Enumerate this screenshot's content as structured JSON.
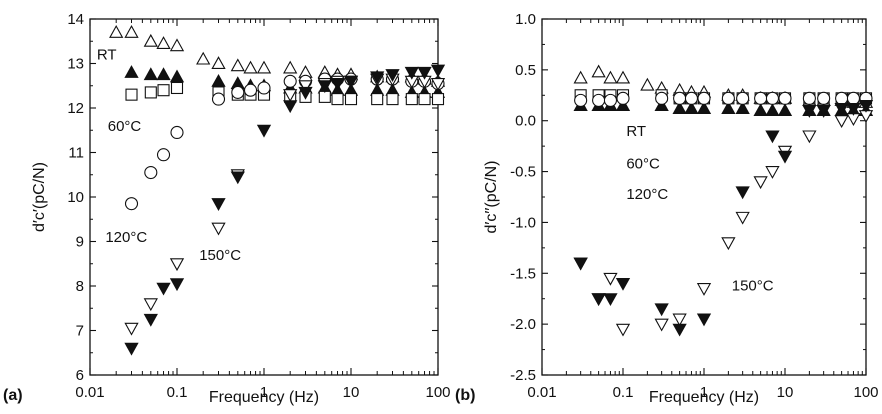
{
  "chart_data": [
    {
      "type": "scatter",
      "panel_label": "(a)",
      "xlabel": "Frequency (Hz)",
      "ylabel": "d′c′(pC/N)",
      "xscale": "log",
      "xlim": [
        0.01,
        100
      ],
      "ylim": [
        6,
        14
      ],
      "xticks": [
        0.01,
        0.1,
        1,
        10,
        100
      ],
      "xtick_labels": [
        "0.01",
        "0.1",
        "1",
        "10",
        "100"
      ],
      "yticks": [
        6,
        7,
        8,
        9,
        10,
        11,
        12,
        13,
        14
      ],
      "ytick_labels": [
        "6",
        "7",
        "8",
        "9",
        "10",
        "11",
        "12",
        "13",
        "14"
      ],
      "grid": false,
      "annotations": [
        {
          "text": "RT",
          "x": 0.012,
          "y": 13.2
        },
        {
          "text": "60°C",
          "x": 0.016,
          "y": 11.6
        },
        {
          "text": "120°C",
          "x": 0.015,
          "y": 9.1
        },
        {
          "text": "150°C",
          "x": 0.18,
          "y": 8.7
        }
      ],
      "series": [
        {
          "marker": "triangle-up-open",
          "x": [
            0.02,
            0.03,
            0.05,
            0.07,
            0.1,
            0.2,
            0.3,
            0.5,
            0.7,
            1,
            2,
            3,
            5,
            7,
            10,
            20,
            30,
            50,
            70,
            100
          ],
          "y": [
            13.7,
            13.7,
            13.5,
            13.45,
            13.4,
            13.1,
            13.0,
            12.95,
            12.9,
            12.9,
            12.9,
            12.8,
            12.8,
            12.75,
            12.75,
            12.7,
            12.7,
            12.7,
            12.65,
            12.6
          ]
        },
        {
          "marker": "triangle-up-filled",
          "x": [
            0.03,
            0.05,
            0.07,
            0.1,
            0.3,
            0.5,
            0.7,
            1,
            2,
            3,
            5,
            7,
            10,
            20,
            30,
            50,
            70,
            100
          ],
          "y": [
            12.8,
            12.75,
            12.75,
            12.7,
            12.6,
            12.55,
            12.5,
            12.5,
            12.45,
            12.45,
            12.45,
            12.4,
            12.4,
            12.4,
            12.4,
            12.35,
            12.35,
            12.35
          ]
        },
        {
          "marker": "square-open",
          "x": [
            0.03,
            0.05,
            0.07,
            0.1,
            0.3,
            0.5,
            0.7,
            1,
            2,
            3,
            5,
            7,
            10,
            20,
            30,
            50,
            70,
            100
          ],
          "y": [
            12.3,
            12.35,
            12.4,
            12.45,
            12.35,
            12.3,
            12.3,
            12.3,
            12.25,
            12.25,
            12.25,
            12.2,
            12.2,
            12.2,
            12.2,
            12.2,
            12.2,
            12.2
          ]
        },
        {
          "marker": "circle-open",
          "x": [
            0.03,
            0.05,
            0.07,
            0.1,
            0.3,
            0.5,
            0.7,
            1,
            2,
            3,
            5,
            7,
            10,
            20,
            30,
            50,
            70,
            100
          ],
          "y": [
            9.85,
            10.55,
            10.95,
            11.45,
            12.2,
            12.35,
            12.4,
            12.45,
            12.6,
            12.6,
            12.65,
            12.65,
            12.65,
            12.65,
            12.65,
            12.6,
            12.6,
            12.55
          ]
        },
        {
          "marker": "triangle-down-open",
          "x": [
            0.03,
            0.05,
            0.1,
            0.3,
            0.5,
            2,
            3,
            5,
            7,
            10,
            20,
            30,
            50,
            70,
            100
          ],
          "y": [
            7.05,
            7.6,
            8.5,
            9.3,
            10.5,
            12.3,
            12.5,
            12.55,
            12.6,
            12.6,
            12.65,
            12.65,
            12.6,
            12.6,
            12.55
          ]
        },
        {
          "marker": "triangle-down-filled",
          "x": [
            0.03,
            0.05,
            0.07,
            0.1,
            0.3,
            0.5,
            1,
            2,
            3,
            5,
            7,
            10,
            20,
            30,
            50,
            70,
            100
          ],
          "y": [
            6.6,
            7.25,
            7.95,
            8.05,
            9.85,
            10.45,
            11.5,
            12.05,
            12.35,
            12.5,
            12.55,
            12.6,
            12.7,
            12.75,
            12.8,
            12.8,
            12.85
          ]
        }
      ]
    },
    {
      "type": "scatter",
      "panel_label": "(b)",
      "xlabel": "Frequency (Hz)",
      "ylabel": "d′c′′(pC/N)",
      "xscale": "log",
      "xlim": [
        0.01,
        100
      ],
      "ylim": [
        -2.5,
        1.0
      ],
      "xticks": [
        0.01,
        0.1,
        1,
        10,
        100
      ],
      "xtick_labels": [
        "0.01",
        "0.1",
        "1",
        "10",
        "100"
      ],
      "yticks": [
        -2.5,
        -2.0,
        -1.5,
        -1.0,
        -0.5,
        0.0,
        0.5,
        1.0
      ],
      "ytick_labels": [
        "-2.5",
        "-2.0",
        "-1.5",
        "-1.0",
        "-0.5",
        "0.0",
        "0.5",
        "1.0"
      ],
      "grid": false,
      "annotations": [
        {
          "text": "RT",
          "x": 0.11,
          "y": -0.1
        },
        {
          "text": "60°C",
          "x": 0.11,
          "y": -0.42
        },
        {
          "text": "120°C",
          "x": 0.11,
          "y": -0.72
        },
        {
          "text": "150°C",
          "x": 2.2,
          "y": -1.62
        }
      ],
      "series": [
        {
          "marker": "triangle-up-open",
          "x": [
            0.03,
            0.05,
            0.07,
            0.1,
            0.2,
            0.3,
            0.5,
            0.7,
            1,
            2,
            3,
            5,
            7,
            10,
            20,
            30,
            50,
            70,
            100
          ],
          "y": [
            0.42,
            0.48,
            0.42,
            0.42,
            0.35,
            0.32,
            0.3,
            0.28,
            0.28,
            0.25,
            0.25,
            0.22,
            0.22,
            0.22,
            0.2,
            0.2,
            0.2,
            0.18,
            0.18
          ]
        },
        {
          "marker": "triangle-up-filled",
          "x": [
            0.03,
            0.05,
            0.07,
            0.1,
            0.3,
            0.5,
            0.7,
            1,
            2,
            3,
            5,
            7,
            10,
            20,
            30,
            50,
            70,
            100
          ],
          "y": [
            0.15,
            0.15,
            0.15,
            0.15,
            0.15,
            0.12,
            0.12,
            0.12,
            0.12,
            0.12,
            0.1,
            0.1,
            0.1,
            0.1,
            0.1,
            0.1,
            0.1,
            0.1
          ]
        },
        {
          "marker": "square-open",
          "x": [
            0.03,
            0.05,
            0.07,
            0.1,
            0.3,
            0.5,
            0.7,
            1,
            2,
            3,
            5,
            7,
            10,
            20,
            30,
            50,
            70,
            100
          ],
          "y": [
            0.25,
            0.25,
            0.25,
            0.25,
            0.25,
            0.22,
            0.22,
            0.22,
            0.22,
            0.22,
            0.22,
            0.22,
            0.22,
            0.22,
            0.22,
            0.22,
            0.22,
            0.22
          ]
        },
        {
          "marker": "circle-open",
          "x": [
            0.03,
            0.05,
            0.07,
            0.1,
            0.3,
            0.5,
            0.7,
            1,
            2,
            3,
            5,
            7,
            10,
            20,
            30,
            50,
            70,
            100
          ],
          "y": [
            0.2,
            0.2,
            0.2,
            0.22,
            0.22,
            0.22,
            0.22,
            0.22,
            0.22,
            0.22,
            0.22,
            0.22,
            0.22,
            0.22,
            0.22,
            0.22,
            0.22,
            0.22
          ]
        },
        {
          "marker": "triangle-down-open",
          "x": [
            0.03,
            0.05,
            0.07,
            0.1,
            0.3,
            0.5,
            1,
            2,
            3,
            5,
            7,
            10,
            20,
            50,
            70,
            100
          ],
          "y": [
            -1.4,
            -1.75,
            -1.55,
            -2.05,
            -2.0,
            -1.95,
            -1.65,
            -1.2,
            -0.95,
            -0.6,
            -0.5,
            -0.3,
            -0.15,
            0.0,
            0.02,
            0.05
          ]
        },
        {
          "marker": "triangle-down-filled",
          "x": [
            0.03,
            0.05,
            0.07,
            0.1,
            0.3,
            0.5,
            1,
            3,
            7,
            10,
            20,
            30,
            50,
            70,
            100
          ],
          "y": [
            -1.4,
            -1.75,
            -1.75,
            -1.6,
            -1.85,
            -2.05,
            -1.95,
            -0.7,
            -0.15,
            -0.35,
            0.1,
            0.1,
            0.12,
            0.12,
            0.15
          ]
        }
      ]
    }
  ]
}
